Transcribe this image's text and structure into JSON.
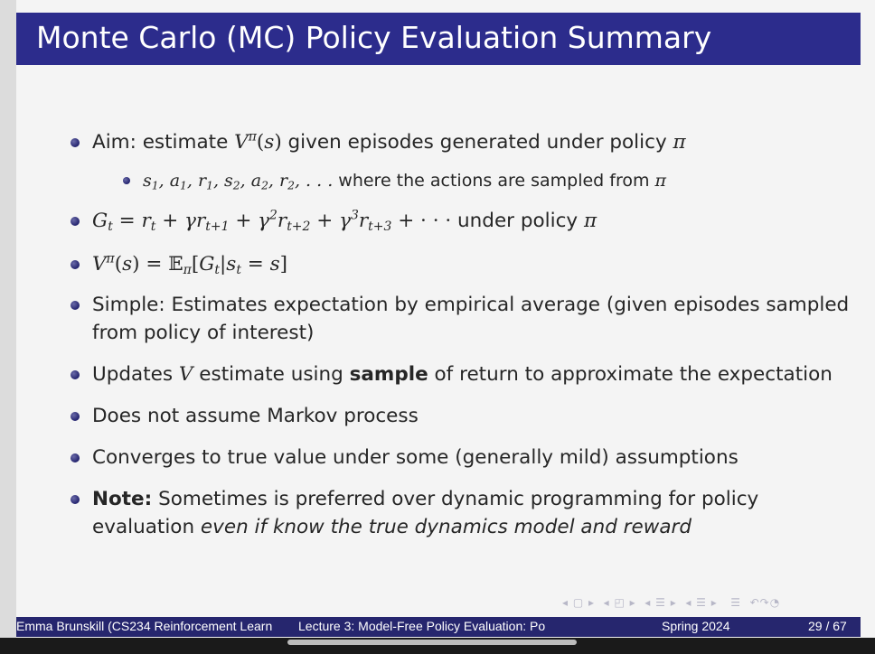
{
  "title": "Monte Carlo (MC) Policy Evaluation Summary",
  "bullets": {
    "aim": {
      "prefix": "Aim: estimate ",
      "math": "V^π(s)",
      "suffix": " given episodes generated under policy ",
      "pi": "π"
    },
    "aim_sub": {
      "text": "where the actions are sampled from "
    },
    "gt": {
      "suffix": " under policy "
    },
    "simple": {
      "line1": "Simple: Estimates expectation by empirical average (given episodes sampled",
      "line2": "from policy of interest)"
    },
    "updates": {
      "part1": "Updates ",
      "v": "V",
      "part2": " estimate using ",
      "bold": "sample",
      "part3": " of return to approximate the expectation"
    },
    "markov": "Does not assume Markov process",
    "converges": "Converges to true value under some (generally mild) assumptions",
    "note": {
      "label": "Note:",
      "line1": " Sometimes is preferred over dynamic programming for policy",
      "line2a": "evaluation ",
      "line2b": "even if know the true dynamics model and reward"
    }
  },
  "footer": {
    "author": "Emma Brunskill (CS234 Reinforcement Learn",
    "lecture": "Lecture 3: Model-Free Policy Evaluation: Po",
    "term": "Spring 2024",
    "page": "29 / 67"
  }
}
